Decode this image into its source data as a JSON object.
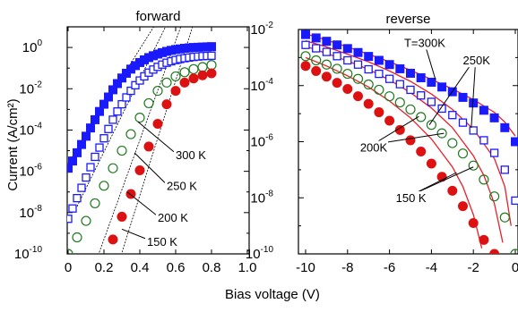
{
  "chart_data": [
    {
      "type": "scatter",
      "title": "forward",
      "xlabel": "Bias voltage (V)",
      "ylabel": "Current (A/cm²)",
      "xlim": [
        -0.06,
        1.03
      ],
      "ylim": [
        -10,
        1
      ],
      "y_scale": "log",
      "grid": false,
      "x_ticks": [
        "0",
        "0.2",
        "0.4",
        "0.6",
        "0.8",
        "1.0"
      ],
      "y_ticks": [
        {
          "mant": "10",
          "exp": "0",
          "v": 0
        },
        {
          "mant": "10",
          "exp": "-2",
          "v": -2
        },
        {
          "mant": "10",
          "exp": "-4",
          "v": -4
        },
        {
          "mant": "10",
          "exp": "-6",
          "v": -6
        },
        {
          "mant": "10",
          "exp": "-8",
          "v": -8
        },
        {
          "mant": "10",
          "exp": "-10",
          "v": -10
        }
      ],
      "series": [
        {
          "name": "300 K",
          "marker": "filled-square",
          "color": "#1a1aff",
          "x": [
            0,
            0.025,
            0.05,
            0.075,
            0.1,
            0.125,
            0.15,
            0.175,
            0.2,
            0.225,
            0.25,
            0.275,
            0.3,
            0.325,
            0.35,
            0.375,
            0.4,
            0.425,
            0.45,
            0.475,
            0.5,
            0.525,
            0.55,
            0.575,
            0.6,
            0.625,
            0.65,
            0.675,
            0.7,
            0.725,
            0.75,
            0.775,
            0.8
          ],
          "y": [
            -5.85,
            -5.5,
            -5.1,
            -4.7,
            -4.3,
            -3.9,
            -3.5,
            -3.1,
            -2.75,
            -2.4,
            -2.05,
            -1.75,
            -1.48,
            -1.25,
            -1.05,
            -0.88,
            -0.73,
            -0.6,
            -0.49,
            -0.4,
            -0.32,
            -0.25,
            -0.19,
            -0.14,
            -0.1,
            -0.07,
            -0.04,
            -0.02,
            0,
            0.01,
            0.02,
            0.03,
            0.04
          ]
        },
        {
          "name": "250 K",
          "marker": "open-square",
          "color": "#1a1aff",
          "x": [
            0,
            0.025,
            0.05,
            0.075,
            0.1,
            0.125,
            0.15,
            0.175,
            0.2,
            0.225,
            0.25,
            0.275,
            0.3,
            0.325,
            0.35,
            0.375,
            0.4,
            0.425,
            0.45,
            0.475,
            0.5,
            0.525,
            0.55,
            0.575,
            0.6,
            0.625,
            0.65,
            0.675,
            0.7,
            0.725,
            0.75,
            0.775,
            0.8
          ],
          "y": [
            -8.3,
            -7.8,
            -7.3,
            -6.8,
            -6.3,
            -5.8,
            -5.3,
            -4.85,
            -4.4,
            -3.95,
            -3.5,
            -3.1,
            -2.75,
            -2.42,
            -2.1,
            -1.83,
            -1.6,
            -1.4,
            -1.22,
            -1.07,
            -0.94,
            -0.83,
            -0.74,
            -0.67,
            -0.61,
            -0.56,
            -0.52,
            -0.49,
            -0.46,
            -0.44,
            -0.42,
            -0.41,
            -0.4
          ]
        },
        {
          "name": "200 K",
          "marker": "open-circle",
          "color": "#1f7a1f",
          "x": [
            0,
            0.05,
            0.1,
            0.15,
            0.2,
            0.25,
            0.3,
            0.35,
            0.4,
            0.45,
            0.5,
            0.55,
            0.6,
            0.65,
            0.7,
            0.75,
            0.8
          ],
          "y": [
            -10,
            -9.2,
            -8.4,
            -7.55,
            -6.7,
            -5.85,
            -5.0,
            -4.2,
            -3.4,
            -2.7,
            -2.1,
            -1.7,
            -1.4,
            -1.2,
            -1.05,
            -0.95,
            -0.85
          ]
        },
        {
          "name": "150 K",
          "marker": "filled-circle",
          "color": "#dd1111",
          "x": [
            0.2,
            0.25,
            0.3,
            0.35,
            0.4,
            0.45,
            0.5,
            0.55,
            0.6,
            0.65,
            0.7,
            0.75,
            0.8
          ],
          "y": [
            -10.3,
            -9.3,
            -8.2,
            -7.1,
            -5.95,
            -4.8,
            -3.7,
            -2.75,
            -2.1,
            -1.7,
            -1.5,
            -1.35,
            -1.25
          ]
        }
      ],
      "fit_lines": [
        {
          "for": "300 K",
          "x": [
            0,
            0.55
          ],
          "y": [
            -5.6,
            2.0
          ]
        },
        {
          "for": "250 K",
          "x": [
            0.05,
            0.6
          ],
          "y": [
            -7.7,
            2.0
          ]
        },
        {
          "for": "200 K",
          "x": [
            0.15,
            0.67
          ],
          "y": [
            -10.5,
            2.0
          ]
        },
        {
          "for": "150 K",
          "x": [
            0.28,
            0.73
          ],
          "y": [
            -10.5,
            2.0
          ]
        }
      ],
      "annotations": [
        {
          "text": "300 K",
          "lx": 0.6,
          "ly": -5.4,
          "px": 0.39,
          "py": -3.6
        },
        {
          "text": "250 K",
          "lx": 0.55,
          "ly": -6.9,
          "px": 0.37,
          "py": -5.1
        },
        {
          "text": "200 K",
          "lx": 0.5,
          "ly": -8.45,
          "px": 0.33,
          "py": -7.0
        },
        {
          "text": "150 K",
          "lx": 0.44,
          "ly": -9.6,
          "px": 0.3,
          "py": -8.8
        }
      ]
    },
    {
      "type": "scatter",
      "title": "reverse",
      "xlabel": "Bias voltage (V)",
      "ylabel": "",
      "xlim": [
        -10.3,
        0.25
      ],
      "ylim": [
        -10,
        -2
      ],
      "y_scale": "log",
      "grid": false,
      "x_ticks": [
        "-10",
        "-8",
        "-6",
        "-4",
        "-2",
        "0"
      ],
      "y_ticks": [
        {
          "mant": "10",
          "exp": "-2",
          "v": -2
        },
        {
          "mant": "10",
          "exp": "-4",
          "v": -4
        },
        {
          "mant": "10",
          "exp": "-6",
          "v": -6
        },
        {
          "mant": "10",
          "exp": "-8",
          "v": -8
        },
        {
          "mant": "10",
          "exp": "-10",
          "v": -10
        }
      ],
      "series": [
        {
          "name": "T=300K",
          "marker": "filled-square",
          "color": "#1a1aff",
          "x": [
            -10,
            -9.5,
            -9,
            -8.5,
            -8,
            -7.5,
            -7,
            -6.5,
            -6,
            -5.5,
            -5,
            -4.5,
            -4,
            -3.5,
            -3,
            -2.5,
            -2,
            -1.5,
            -1,
            -0.5,
            0
          ],
          "y": [
            -2.18,
            -2.3,
            -2.42,
            -2.55,
            -2.68,
            -2.82,
            -2.96,
            -3.1,
            -3.25,
            -3.4,
            -3.56,
            -3.72,
            -3.88,
            -4.05,
            -4.22,
            -4.42,
            -4.62,
            -4.88,
            -5.15,
            -5.5,
            -6.0
          ]
        },
        {
          "name": "250K",
          "marker": "open-square",
          "color": "#1a1aff",
          "x": [
            -10,
            -9.5,
            -9,
            -8.5,
            -8,
            -7.5,
            -7,
            -6.5,
            -6,
            -5.5,
            -5,
            -4.5,
            -4,
            -3.5,
            -3,
            -2.5,
            -2,
            -1.5,
            -1,
            -0.5,
            0
          ],
          "y": [
            -2.55,
            -2.67,
            -2.8,
            -2.95,
            -3.1,
            -3.25,
            -3.42,
            -3.58,
            -3.76,
            -3.95,
            -4.15,
            -4.35,
            -4.58,
            -4.82,
            -5.05,
            -5.32,
            -5.6,
            -5.95,
            -6.4,
            -7.0,
            -8.1
          ]
        },
        {
          "name": "200K",
          "marker": "open-circle",
          "color": "#1f7a1f",
          "x": [
            -10,
            -9.5,
            -9,
            -8.5,
            -8,
            -7.5,
            -7,
            -6.5,
            -6,
            -5.5,
            -5,
            -4.5,
            -4,
            -3.5,
            -3,
            -2.5,
            -2,
            -1.5,
            -1,
            -0.5,
            0
          ],
          "y": [
            -2.95,
            -3.1,
            -3.25,
            -3.4,
            -3.58,
            -3.76,
            -3.96,
            -4.15,
            -4.38,
            -4.6,
            -4.85,
            -5.12,
            -5.4,
            -5.7,
            -6.05,
            -6.42,
            -6.85,
            -7.35,
            -7.95,
            -8.7,
            -10.0
          ]
        },
        {
          "name": "150 K",
          "marker": "filled-circle",
          "color": "#dd1111",
          "x": [
            -10,
            -9.5,
            -9,
            -8.5,
            -8,
            -7.5,
            -7,
            -6.5,
            -6,
            -5.5,
            -5,
            -4.5,
            -4,
            -3.5,
            -3,
            -2.5,
            -2,
            -1.5,
            -1
          ],
          "y": [
            -3.3,
            -3.48,
            -3.68,
            -3.9,
            -4.12,
            -4.38,
            -4.65,
            -4.95,
            -5.25,
            -5.58,
            -5.95,
            -6.35,
            -6.78,
            -7.25,
            -7.75,
            -8.3,
            -8.9,
            -9.5,
            -10.0
          ]
        }
      ],
      "fit_lines": [
        {
          "for": "T=300K",
          "x": [
            -10,
            -9,
            -8,
            -7,
            -6,
            -5,
            -4,
            -3,
            -2,
            -1,
            -0.5,
            0
          ],
          "y": [
            -2.15,
            -2.38,
            -2.62,
            -2.88,
            -3.15,
            -3.45,
            -3.78,
            -4.12,
            -4.5,
            -4.95,
            -5.3,
            -5.8
          ]
        },
        {
          "for": "250K",
          "x": [
            -10,
            -9,
            -8,
            -7,
            -6,
            -5,
            -4,
            -3,
            -2,
            -1,
            -0.5,
            -0.2
          ],
          "y": [
            -2.4,
            -2.62,
            -2.88,
            -3.15,
            -3.48,
            -3.85,
            -4.3,
            -4.85,
            -5.55,
            -6.6,
            -7.6,
            -9.0
          ]
        },
        {
          "for": "200K",
          "x": [
            -10,
            -9,
            -8,
            -7,
            -6,
            -5,
            -4,
            -3,
            -2,
            -1.5,
            -1,
            -0.6
          ],
          "y": [
            -2.6,
            -2.85,
            -3.12,
            -3.42,
            -3.8,
            -4.25,
            -4.8,
            -5.5,
            -6.5,
            -7.2,
            -8.2,
            -9.6
          ]
        },
        {
          "for": "150 K",
          "x": [
            -10,
            -9,
            -8,
            -7,
            -6,
            -5,
            -4,
            -3,
            -2.5,
            -2,
            -1.6
          ],
          "y": [
            -3.0,
            -3.3,
            -3.65,
            -4.05,
            -4.55,
            -5.15,
            -5.9,
            -6.9,
            -7.6,
            -8.6,
            -9.8
          ]
        }
      ],
      "annotations": [
        {
          "text": "T=300K",
          "lx": -5.3,
          "ly": -2.62,
          "targets": [
            [
              -3.8,
              -3.8
            ]
          ]
        },
        {
          "text": "250K",
          "lx": -2.5,
          "ly": -3.25,
          "targets": [
            [
              -4.1,
              -5.4
            ],
            [
              -2.1,
              -5.5
            ]
          ]
        },
        {
          "text": "200K",
          "lx": -7.4,
          "ly": -6.35,
          "targets": [
            [
              -4.6,
              -5.1
            ],
            [
              -3.4,
              -5.7
            ]
          ]
        },
        {
          "text": "150 K",
          "lx": -5.7,
          "ly": -8.15,
          "targets": [
            [
              -2.8,
              -7.1
            ],
            [
              -2.0,
              -6.9
            ]
          ]
        }
      ]
    }
  ],
  "figure": {
    "ylabel": "Current (A/cm²)",
    "xlabel": "Bias voltage (V)"
  }
}
